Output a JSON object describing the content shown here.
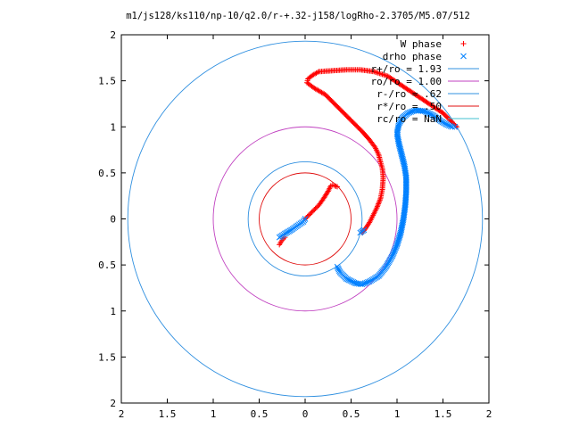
{
  "chart_data": {
    "type": "scatter",
    "title": "m1/js128/ks110/np-10/q2.0/r-+.32-j158/logRho-2.3705/M5.07/512",
    "xlim": [
      -2,
      2
    ],
    "ylim": [
      -2,
      2
    ],
    "x_tick_labels": [
      "2",
      "1.5",
      "1",
      "0.5",
      "0",
      "0.5",
      "1",
      "1.5",
      "2"
    ],
    "y_tick_labels": [
      "2",
      "1.5",
      "1",
      "0.5",
      "0",
      "0.5",
      "1",
      "1.5",
      "2"
    ],
    "grid": false,
    "legend_position": "top-right",
    "circles": [
      {
        "label": "r+/ro = 1.93",
        "radius": 1.93,
        "color": "#3090e0"
      },
      {
        "label": "ro/ro = 1.00",
        "radius": 1.0,
        "color": "#c040c0"
      },
      {
        "label": "r-/ro = .62",
        "radius": 0.62,
        "color": "#3090e0"
      },
      {
        "label": "r*/ro = .50",
        "radius": 0.5,
        "color": "#e01010"
      },
      {
        "label": "rc/ro = NaN",
        "radius": null,
        "color": "#40c0d0"
      }
    ],
    "series": [
      {
        "name": "W phase",
        "marker": "+",
        "color": "#ff0000",
        "points": [
          [
            -0.28,
            -0.28
          ],
          [
            -0.25,
            -0.23
          ],
          [
            -0.22,
            -0.2
          ],
          [
            0.0,
            0.0
          ],
          [
            0.05,
            0.05
          ],
          [
            0.1,
            0.1
          ],
          [
            0.15,
            0.15
          ],
          [
            0.2,
            0.22
          ],
          [
            0.25,
            0.3
          ],
          [
            0.28,
            0.36
          ],
          [
            0.3,
            0.37
          ],
          [
            0.32,
            0.36
          ],
          [
            0.35,
            0.35
          ],
          [
            0.62,
            -0.15
          ],
          [
            0.66,
            -0.1
          ],
          [
            0.7,
            -0.04
          ],
          [
            0.74,
            0.04
          ],
          [
            0.78,
            0.12
          ],
          [
            0.82,
            0.22
          ],
          [
            0.84,
            0.32
          ],
          [
            0.85,
            0.45
          ],
          [
            0.84,
            0.55
          ],
          [
            0.82,
            0.62
          ],
          [
            0.8,
            0.7
          ],
          [
            0.76,
            0.78
          ],
          [
            0.7,
            0.86
          ],
          [
            0.62,
            0.95
          ],
          [
            0.52,
            1.05
          ],
          [
            0.42,
            1.15
          ],
          [
            0.32,
            1.25
          ],
          [
            0.22,
            1.35
          ],
          [
            0.1,
            1.42
          ],
          [
            0.02,
            1.48
          ],
          [
            0.03,
            1.52
          ],
          [
            0.08,
            1.56
          ],
          [
            0.15,
            1.6
          ],
          [
            0.3,
            1.61
          ],
          [
            0.45,
            1.62
          ],
          [
            0.6,
            1.62
          ],
          [
            0.75,
            1.6
          ],
          [
            0.9,
            1.55
          ],
          [
            1.05,
            1.45
          ],
          [
            1.2,
            1.35
          ],
          [
            1.35,
            1.25
          ],
          [
            1.5,
            1.15
          ],
          [
            1.6,
            1.05
          ],
          [
            1.65,
            1.0
          ]
        ]
      },
      {
        "name": "drho phase",
        "marker": "x",
        "color": "#0080ff",
        "points": [
          [
            -0.28,
            -0.2
          ],
          [
            -0.22,
            -0.16
          ],
          [
            -0.15,
            -0.12
          ],
          [
            -0.08,
            -0.07
          ],
          [
            -0.02,
            -0.03
          ],
          [
            0.0,
            0.0
          ],
          [
            0.35,
            -0.52
          ],
          [
            0.38,
            -0.58
          ],
          [
            0.45,
            -0.65
          ],
          [
            0.55,
            -0.7
          ],
          [
            0.62,
            -0.71
          ],
          [
            0.7,
            -0.68
          ],
          [
            0.8,
            -0.62
          ],
          [
            0.88,
            -0.52
          ],
          [
            0.95,
            -0.4
          ],
          [
            1.0,
            -0.28
          ],
          [
            1.04,
            -0.15
          ],
          [
            1.07,
            0.0
          ],
          [
            1.09,
            0.15
          ],
          [
            1.1,
            0.3
          ],
          [
            1.1,
            0.45
          ],
          [
            1.08,
            0.58
          ],
          [
            1.05,
            0.7
          ],
          [
            1.02,
            0.82
          ],
          [
            1.0,
            0.93
          ],
          [
            1.02,
            1.03
          ],
          [
            1.06,
            1.1
          ],
          [
            1.12,
            1.15
          ],
          [
            1.2,
            1.18
          ],
          [
            1.3,
            1.17
          ],
          [
            1.4,
            1.12
          ],
          [
            1.48,
            1.06
          ],
          [
            1.55,
            1.02
          ],
          [
            1.6,
            1.0
          ],
          [
            1.63,
            1.0
          ],
          [
            0.6,
            -0.15
          ],
          [
            0.64,
            -0.12
          ]
        ]
      }
    ]
  }
}
